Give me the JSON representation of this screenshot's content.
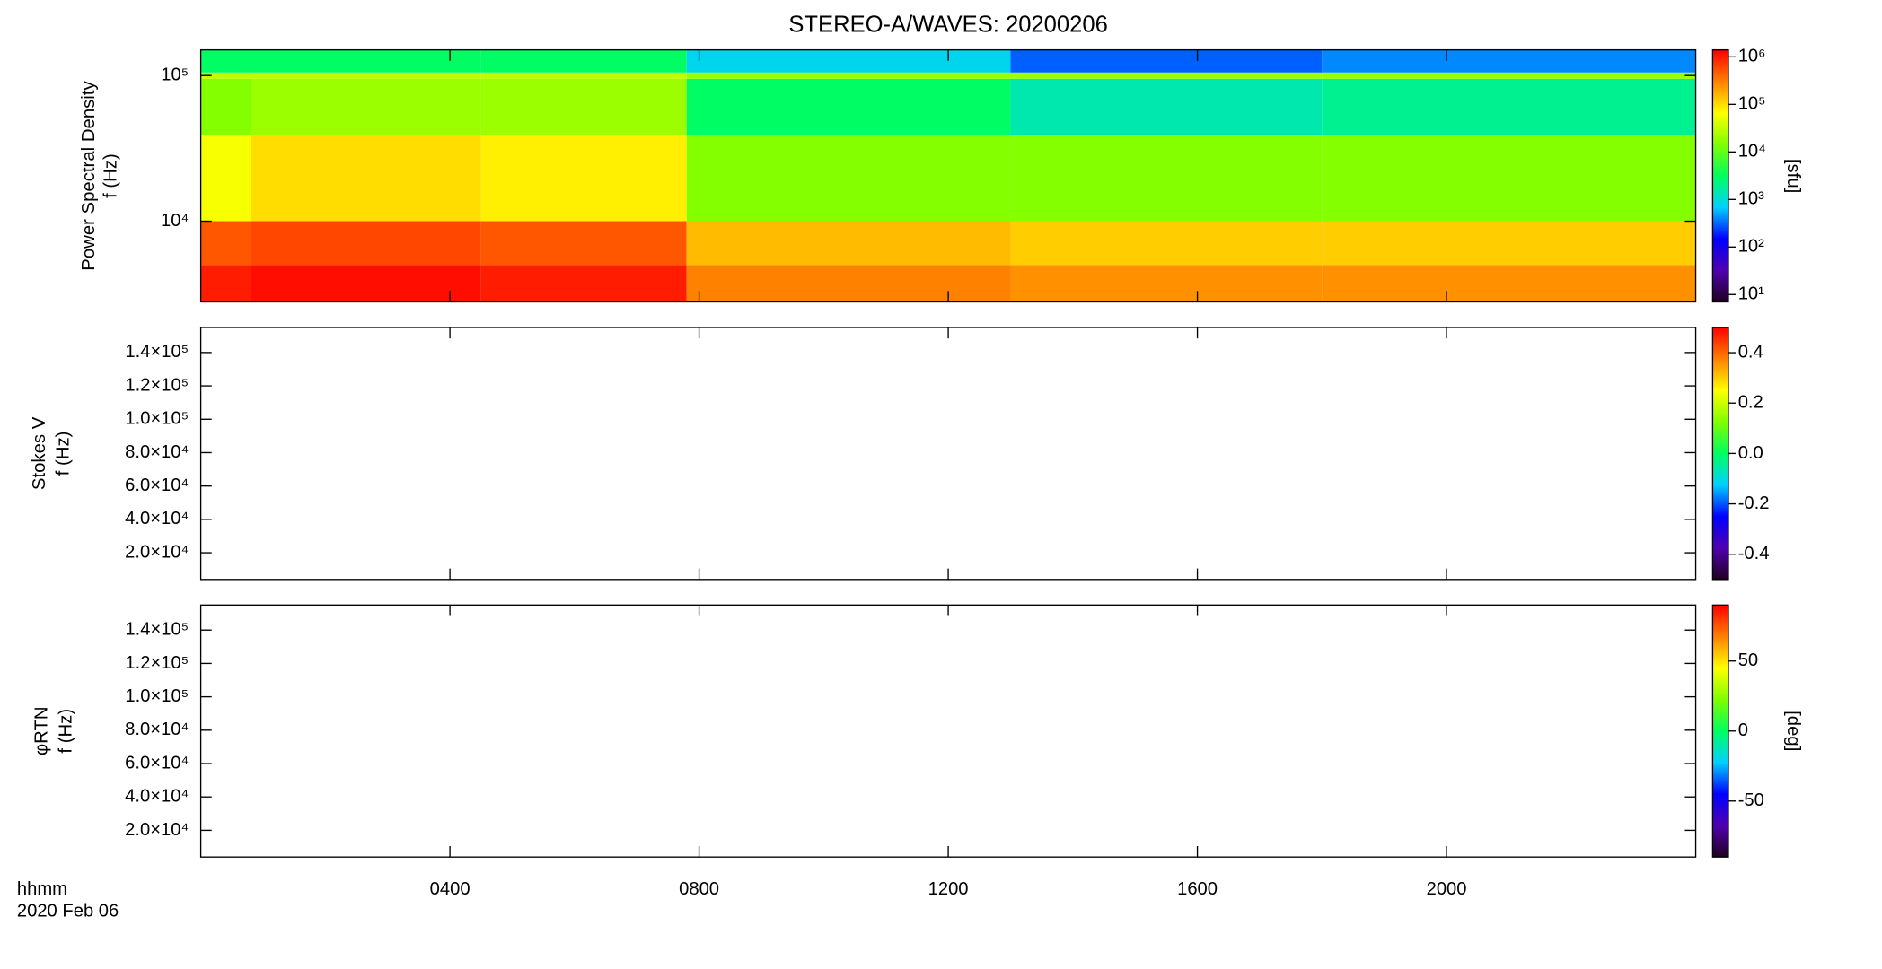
{
  "chart_data": [
    {
      "type": "heatmap",
      "title": "STEREO-A/WAVES: 20200206",
      "ylabel": [
        "Power Spectral Density",
        "f (Hz)"
      ],
      "ylog": true,
      "xlim": [
        0,
        24
      ],
      "ylim": [
        2790,
        150000
      ],
      "yticks": [
        {
          "value": 10000,
          "label": "10⁴"
        },
        {
          "value": 100000,
          "label": "10⁵"
        }
      ],
      "xbins": [
        0,
        0.8,
        4.5,
        7.8,
        13,
        18,
        24
      ],
      "ybins": [
        2790,
        5000,
        10000,
        39000,
        95000,
        105000,
        150000
      ],
      "z": [
        [
          1000000,
          1200000,
          1000000,
          300000,
          250000,
          250000
        ],
        [
          500000,
          600000,
          500000,
          150000,
          120000,
          120000
        ],
        [
          60000,
          100000,
          80000,
          15000,
          15000,
          15000
        ],
        [
          15000,
          20000,
          20000,
          3000,
          1500,
          2000
        ],
        [
          30000,
          30000,
          30000,
          20000,
          20000,
          20000
        ],
        [
          3000,
          3000,
          3000,
          800,
          300,
          400
        ]
      ],
      "colorbar": {
        "label": "[sfu]",
        "log": true,
        "lim": [
          7,
          1400000
        ],
        "ticks": [
          {
            "value": 10,
            "label": "10¹"
          },
          {
            "value": 100,
            "label": "10²"
          },
          {
            "value": 1000,
            "label": "10³"
          },
          {
            "value": 10000,
            "label": "10⁴"
          },
          {
            "value": 100000,
            "label": "10⁵"
          },
          {
            "value": 1000000,
            "label": "10⁶"
          }
        ]
      },
      "colormap": [
        "#200020",
        "#5000b0",
        "#0000ff",
        "#00d0ff",
        "#00ff60",
        "#80ff00",
        "#ffff00",
        "#ff8000",
        "#ff0000"
      ]
    },
    {
      "type": "heatmap",
      "ylabel": [
        "Stokes V",
        "f (Hz)"
      ],
      "ylog": false,
      "xlim": [
        0,
        24
      ],
      "ylim": [
        4000,
        155000
      ],
      "yticks": [
        {
          "value": 20000,
          "label": "2.0×10⁴"
        },
        {
          "value": 40000,
          "label": "4.0×10⁴"
        },
        {
          "value": 60000,
          "label": "6.0×10⁴"
        },
        {
          "value": 80000,
          "label": "8.0×10⁴"
        },
        {
          "value": 100000,
          "label": "1.0×10⁵"
        },
        {
          "value": 120000,
          "label": "1.2×10⁵"
        },
        {
          "value": 140000,
          "label": "1.4×10⁵"
        }
      ],
      "colorbar": {
        "log": false,
        "lim": [
          -0.5,
          0.5
        ],
        "ticks": [
          -0.4,
          -0.2,
          {
            "value": 0,
            "label": "0.0"
          },
          0.2,
          0.4
        ]
      },
      "colormap": [
        "#200020",
        "#5000b0",
        "#0000ff",
        "#00d0ff",
        "#00ff60",
        "#80ff00",
        "#ffff00",
        "#ff8000",
        "#ff0000"
      ]
    },
    {
      "type": "heatmap",
      "ylabel": [
        "φRTN",
        "f (Hz)"
      ],
      "ylog": false,
      "xlim": [
        0,
        24
      ],
      "ylim": [
        4000,
        155000
      ],
      "yticks": [
        {
          "value": 20000,
          "label": "2.0×10⁴"
        },
        {
          "value": 40000,
          "label": "4.0×10⁴"
        },
        {
          "value": 60000,
          "label": "6.0×10⁴"
        },
        {
          "value": 80000,
          "label": "8.0×10⁴"
        },
        {
          "value": 100000,
          "label": "1.0×10⁵"
        },
        {
          "value": 120000,
          "label": "1.2×10⁵"
        },
        {
          "value": 140000,
          "label": "1.4×10⁵"
        }
      ],
      "colorbar": {
        "label": "[deg]",
        "log": false,
        "lim": [
          -90,
          90
        ],
        "ticks": [
          -50,
          0,
          50
        ]
      },
      "colormap": [
        "#200020",
        "#5000b0",
        "#0000ff",
        "#00d0ff",
        "#00ff60",
        "#80ff00",
        "#ffff00",
        "#ff8000",
        "#ff0000"
      ],
      "xlabel": "hhmm",
      "xsublabel": "2020 Feb 06",
      "xticks": [
        {
          "value": 4,
          "label": "0400"
        },
        {
          "value": 8,
          "label": "0800"
        },
        {
          "value": 12,
          "label": "1200"
        },
        {
          "value": 16,
          "label": "1600"
        },
        {
          "value": 20,
          "label": "2000"
        }
      ]
    }
  ]
}
